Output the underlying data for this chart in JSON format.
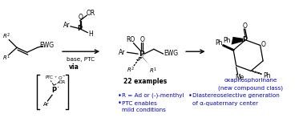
{
  "blue": "#0000cc",
  "black": "#000000",
  "figsize": [
    3.78,
    1.47
  ],
  "dpi": 100,
  "bullet1": "R = Ad or (-)-menthyl",
  "bullet2": "PTC enables",
  "bullet2b": "mild conditions",
  "bullet3": "Diastereoselective generation",
  "bullet3b": "of α-quaternary center",
  "label_22ex": "22 examples",
  "label_oxa": "oxaphosphorinane",
  "label_oxa2": "(new compound class)",
  "label_base": "base, PTC",
  "label_via": "via"
}
